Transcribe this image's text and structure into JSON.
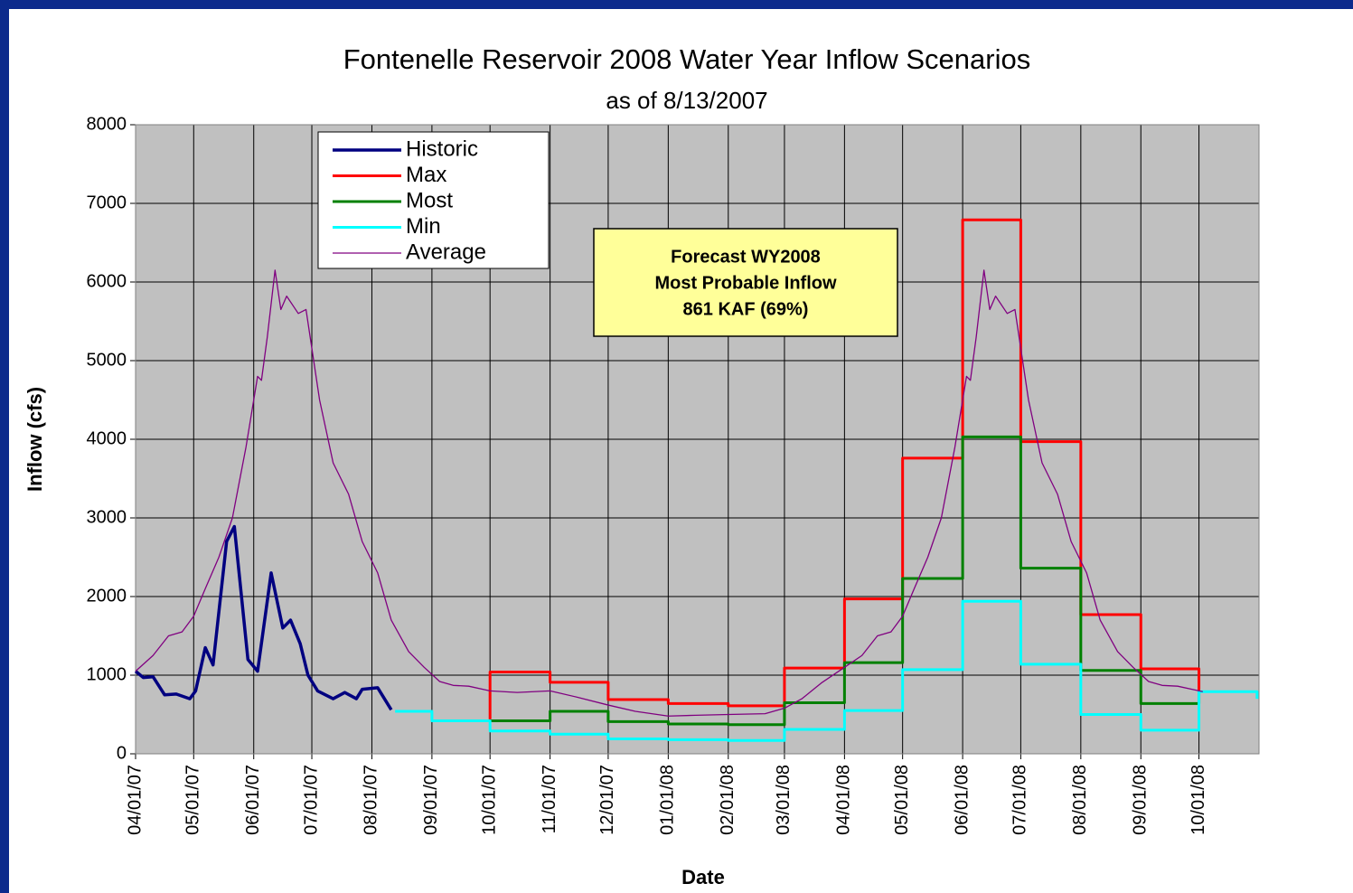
{
  "chart_data": {
    "type": "line",
    "title": "Fontenelle Reservoir 2008 Water Year Inflow Scenarios",
    "subtitle": "as of 8/13/2007",
    "y_label": "Inflow (cfs)",
    "x_label": "Date",
    "annotation": [
      "Forecast WY2008",
      "Most Probable Inflow",
      "861 KAF (69%)"
    ],
    "xlim": [
      "2007-04-01",
      "2008-11-01"
    ],
    "xticks": [
      {
        "value": "2007-04-01",
        "label": "04/01/07"
      },
      {
        "value": "2007-05-01",
        "label": "05/01/07"
      },
      {
        "value": "2007-06-01",
        "label": "06/01/07"
      },
      {
        "value": "2007-07-01",
        "label": "07/01/07"
      },
      {
        "value": "2007-08-01",
        "label": "08/01/07"
      },
      {
        "value": "2007-09-01",
        "label": "09/01/07"
      },
      {
        "value": "2007-10-01",
        "label": "10/01/07"
      },
      {
        "value": "2007-11-01",
        "label": "11/01/07"
      },
      {
        "value": "2007-12-01",
        "label": "12/01/07"
      },
      {
        "value": "2008-01-01",
        "label": "01/01/08"
      },
      {
        "value": "2008-02-01",
        "label": "02/01/08"
      },
      {
        "value": "2008-03-01",
        "label": "03/01/08"
      },
      {
        "value": "2008-04-01",
        "label": "04/01/08"
      },
      {
        "value": "2008-05-01",
        "label": "05/01/08"
      },
      {
        "value": "2008-06-01",
        "label": "06/01/08"
      },
      {
        "value": "2008-07-01",
        "label": "07/01/08"
      },
      {
        "value": "2008-08-01",
        "label": "08/01/08"
      },
      {
        "value": "2008-09-01",
        "label": "09/01/08"
      },
      {
        "value": "2008-10-01",
        "label": "10/01/08"
      }
    ],
    "ylim": [
      0,
      8000
    ],
    "yticks": [
      0,
      1000,
      2000,
      3000,
      4000,
      5000,
      6000,
      7000,
      8000
    ],
    "grid": true,
    "series": [
      {
        "name": "Historic",
        "color": "#000080",
        "width": 3.5,
        "x": [
          "2007-04-01",
          "2007-04-05",
          "2007-04-10",
          "2007-04-16",
          "2007-04-22",
          "2007-04-29",
          "2007-05-02",
          "2007-05-07",
          "2007-05-11",
          "2007-05-18",
          "2007-05-22",
          "2007-05-29",
          "2007-06-03",
          "2007-06-10",
          "2007-06-16",
          "2007-06-20",
          "2007-06-25",
          "2007-06-29",
          "2007-07-04",
          "2007-07-12",
          "2007-07-18",
          "2007-07-24",
          "2007-07-27",
          "2007-08-04",
          "2007-08-11"
        ],
        "values": [
          1050,
          970,
          980,
          750,
          760,
          700,
          800,
          1350,
          1130,
          2700,
          2890,
          1200,
          1050,
          2300,
          1600,
          1700,
          1400,
          1000,
          800,
          700,
          780,
          700,
          820,
          840,
          560
        ]
      },
      {
        "name": "Max",
        "color": "#ff0000",
        "width": 3,
        "x": [
          "2007-10-01",
          "2007-10-01",
          "2007-11-01",
          "2007-11-01",
          "2007-12-01",
          "2007-12-01",
          "2008-01-01",
          "2008-01-01",
          "2008-02-01",
          "2008-02-01",
          "2008-03-01",
          "2008-03-01",
          "2008-04-01",
          "2008-04-01",
          "2008-05-01",
          "2008-05-01",
          "2008-06-01",
          "2008-06-01",
          "2008-07-01",
          "2008-07-01",
          "2008-08-01",
          "2008-08-01",
          "2008-09-01",
          "2008-09-01",
          "2008-10-01",
          "2008-10-01"
        ],
        "values": [
          440,
          1040,
          1040,
          910,
          910,
          690,
          690,
          640,
          640,
          610,
          610,
          1090,
          1090,
          1970,
          1970,
          3760,
          3760,
          6790,
          6790,
          3970,
          3970,
          1770,
          1770,
          1080,
          1080,
          790
        ]
      },
      {
        "name": "Most",
        "color": "#008000",
        "width": 3,
        "x": [
          "2007-10-01",
          "2007-11-01",
          "2007-11-01",
          "2007-12-01",
          "2007-12-01",
          "2008-01-01",
          "2008-01-01",
          "2008-02-01",
          "2008-02-01",
          "2008-03-01",
          "2008-03-01",
          "2008-04-01",
          "2008-04-01",
          "2008-05-01",
          "2008-05-01",
          "2008-06-01",
          "2008-06-01",
          "2008-07-01",
          "2008-07-01",
          "2008-08-01",
          "2008-08-01",
          "2008-09-01",
          "2008-09-01",
          "2008-10-01",
          "2008-10-01"
        ],
        "values": [
          420,
          420,
          540,
          540,
          410,
          410,
          380,
          380,
          370,
          370,
          650,
          650,
          1160,
          1160,
          2230,
          2230,
          4030,
          4030,
          2360,
          2360,
          1060,
          1060,
          640,
          640,
          790
        ]
      },
      {
        "name": "Min",
        "color": "#00ffff",
        "width": 3,
        "x": [
          "2007-08-13",
          "2007-09-01",
          "2007-09-01",
          "2007-10-01",
          "2007-10-01",
          "2007-11-01",
          "2007-11-01",
          "2007-12-01",
          "2007-12-01",
          "2008-01-01",
          "2008-01-01",
          "2008-02-01",
          "2008-02-01",
          "2008-03-01",
          "2008-03-01",
          "2008-04-01",
          "2008-04-01",
          "2008-05-01",
          "2008-05-01",
          "2008-06-01",
          "2008-06-01",
          "2008-07-01",
          "2008-07-01",
          "2008-08-01",
          "2008-08-01",
          "2008-09-01",
          "2008-09-01",
          "2008-10-01",
          "2008-10-01",
          "2008-10-31",
          "2008-10-31"
        ],
        "values": [
          540,
          540,
          420,
          420,
          290,
          290,
          250,
          250,
          190,
          190,
          180,
          180,
          170,
          170,
          310,
          310,
          550,
          550,
          1070,
          1070,
          1940,
          1940,
          1140,
          1140,
          500,
          500,
          300,
          300,
          790,
          790,
          700
        ]
      },
      {
        "name": "Average",
        "color": "#800080",
        "width": 1.3,
        "x": [
          "2007-04-01",
          "2007-04-10",
          "2007-04-18",
          "2007-04-25",
          "2007-05-01",
          "2007-05-07",
          "2007-05-14",
          "2007-05-21",
          "2007-05-28",
          "2007-06-03",
          "2007-06-05",
          "2007-06-08",
          "2007-06-12",
          "2007-06-15",
          "2007-06-18",
          "2007-06-24",
          "2007-06-28",
          "2007-07-05",
          "2007-07-12",
          "2007-07-20",
          "2007-07-27",
          "2007-08-04",
          "2007-08-11",
          "2007-08-20",
          "2007-08-28",
          "2007-09-05",
          "2007-09-12",
          "2007-09-20",
          "2007-10-01",
          "2007-10-15",
          "2007-11-01",
          "2007-11-15",
          "2007-12-01",
          "2007-12-15",
          "2008-01-01",
          "2008-01-15",
          "2008-02-01",
          "2008-02-20",
          "2008-03-01",
          "2008-03-10",
          "2008-03-20",
          "2008-04-01",
          "2008-04-10",
          "2008-04-18",
          "2008-04-25",
          "2008-05-01",
          "2008-05-07",
          "2008-05-14",
          "2008-05-21",
          "2008-05-28",
          "2008-06-03",
          "2008-06-05",
          "2008-06-08",
          "2008-06-12",
          "2008-06-15",
          "2008-06-18",
          "2008-06-24",
          "2008-06-28",
          "2008-07-05",
          "2008-07-12",
          "2008-07-20",
          "2008-07-27",
          "2008-08-04",
          "2008-08-11",
          "2008-08-20",
          "2008-08-28",
          "2008-09-05",
          "2008-09-12",
          "2008-09-20",
          "2008-10-03"
        ],
        "values": [
          1050,
          1250,
          1500,
          1550,
          1750,
          2100,
          2500,
          3000,
          3900,
          4800,
          4750,
          5300,
          6150,
          5650,
          5820,
          5600,
          5650,
          4500,
          3700,
          3300,
          2700,
          2300,
          1700,
          1300,
          1100,
          920,
          870,
          860,
          800,
          780,
          800,
          720,
          620,
          540,
          480,
          490,
          500,
          510,
          580,
          700,
          900,
          1100,
          1250,
          1500,
          1550,
          1750,
          2100,
          2500,
          3000,
          3900,
          4800,
          4750,
          5300,
          6150,
          5650,
          5820,
          5600,
          5650,
          4500,
          3700,
          3300,
          2700,
          2300,
          1700,
          1300,
          1100,
          920,
          870,
          860,
          790
        ]
      }
    ],
    "legend_order": [
      0,
      1,
      2,
      3,
      4
    ]
  }
}
